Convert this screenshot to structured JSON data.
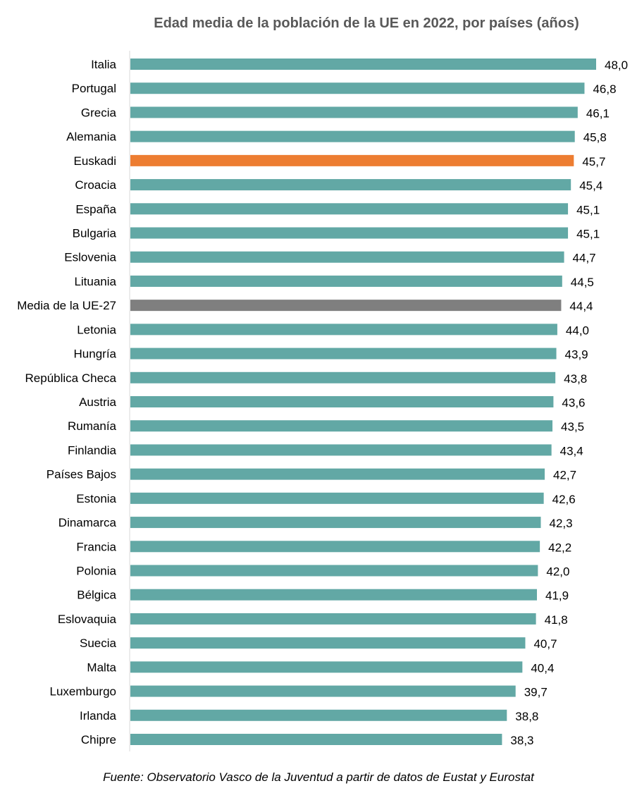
{
  "chart_data": {
    "type": "bar",
    "orientation": "horizontal",
    "title": "Edad media de la población de la UE en 2022, por países (años)",
    "categories": [
      "Italia",
      "Portugal",
      "Grecia",
      "Alemania",
      "Euskadi",
      "Croacia",
      "España",
      "Bulgaria",
      "Eslovenia",
      "Lituania",
      "Media de la UE-27",
      "Letonia",
      "Hungría",
      "República Checa",
      "Austria",
      "Rumanía",
      "Finlandia",
      "Países Bajos",
      "Estonia",
      "Dinamarca",
      "Francia",
      "Polonia",
      "Bélgica",
      "Eslovaquia",
      "Suecia",
      "Malta",
      "Luxemburgo",
      "Irlanda",
      "Chipre"
    ],
    "values": [
      48.0,
      46.8,
      46.1,
      45.8,
      45.7,
      45.4,
      45.1,
      45.1,
      44.7,
      44.5,
      44.4,
      44.0,
      43.9,
      43.8,
      43.6,
      43.5,
      43.4,
      42.7,
      42.6,
      42.3,
      42.2,
      42.0,
      41.9,
      41.8,
      40.7,
      40.4,
      39.7,
      38.8,
      38.3
    ],
    "data_labels": [
      "48,0",
      "46,8",
      "46,1",
      "45,8",
      "45,7",
      "45,4",
      "45,1",
      "45,1",
      "44,7",
      "44,5",
      "44,4",
      "44,0",
      "43,9",
      "43,8",
      "43,6",
      "43,5",
      "43,4",
      "42,7",
      "42,6",
      "42,3",
      "42,2",
      "42,0",
      "41,9",
      "41,8",
      "40,7",
      "40,4",
      "39,7",
      "38,8",
      "38,3"
    ],
    "xlim": [
      0,
      48
    ],
    "grid": false,
    "legend": "none",
    "colors": {
      "default": "#62A8A5",
      "Euskadi": "#ED7D31",
      "Media de la UE-27": "#7F7F7F"
    }
  },
  "source": "Fuente: Observatorio Vasco de la Juventud a partir de datos de Eustat y Eurostat"
}
